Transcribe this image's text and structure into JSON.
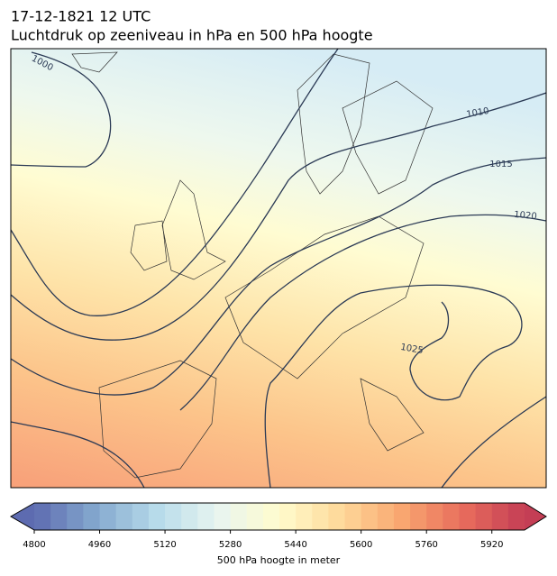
{
  "title": "17-12-1821 12 UTC",
  "subtitle": "Luchtdruk op zeeniveau in hPa en 500 hPa hoogte",
  "contour_labels": [
    "1000",
    "1010",
    "1015",
    "1020",
    "1025"
  ],
  "colorbar": {
    "label": "500 hPa hoogte in meter",
    "range": [
      4800,
      6000
    ],
    "ticks": [
      4800,
      4960,
      5120,
      5280,
      5440,
      5600,
      5760,
      5920
    ]
  }
}
